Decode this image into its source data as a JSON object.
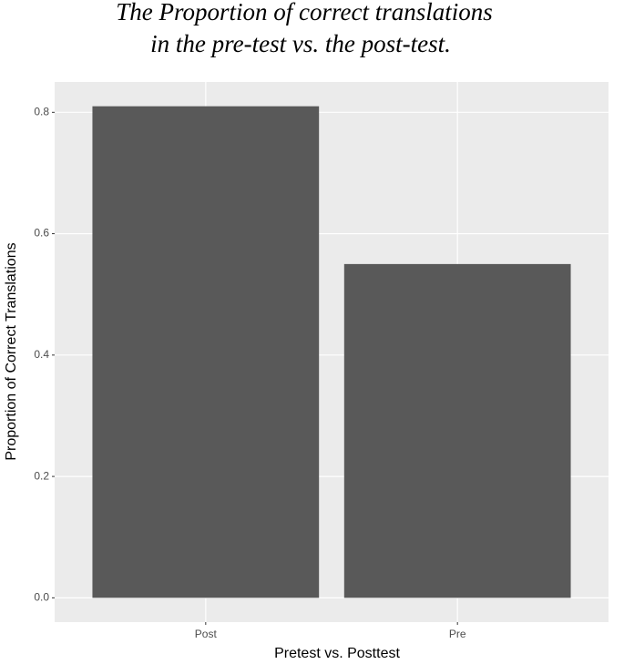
{
  "chart_data": {
    "type": "bar",
    "title": [
      "The Proportion of correct translations",
      "in the pre-test vs. the post-test."
    ],
    "x_label": "Pretest vs. Posttest",
    "y_label": "Proportion of Correct Translations",
    "categories": [
      "Post",
      "Pre"
    ],
    "values": [
      0.81,
      0.55
    ],
    "color": "#595959",
    "ylim": [
      -0.04,
      0.85
    ],
    "yticks": [
      {
        "value": 0,
        "label": "0.0"
      },
      0.2,
      0.4,
      0.6,
      0.8
    ],
    "grid": true
  }
}
